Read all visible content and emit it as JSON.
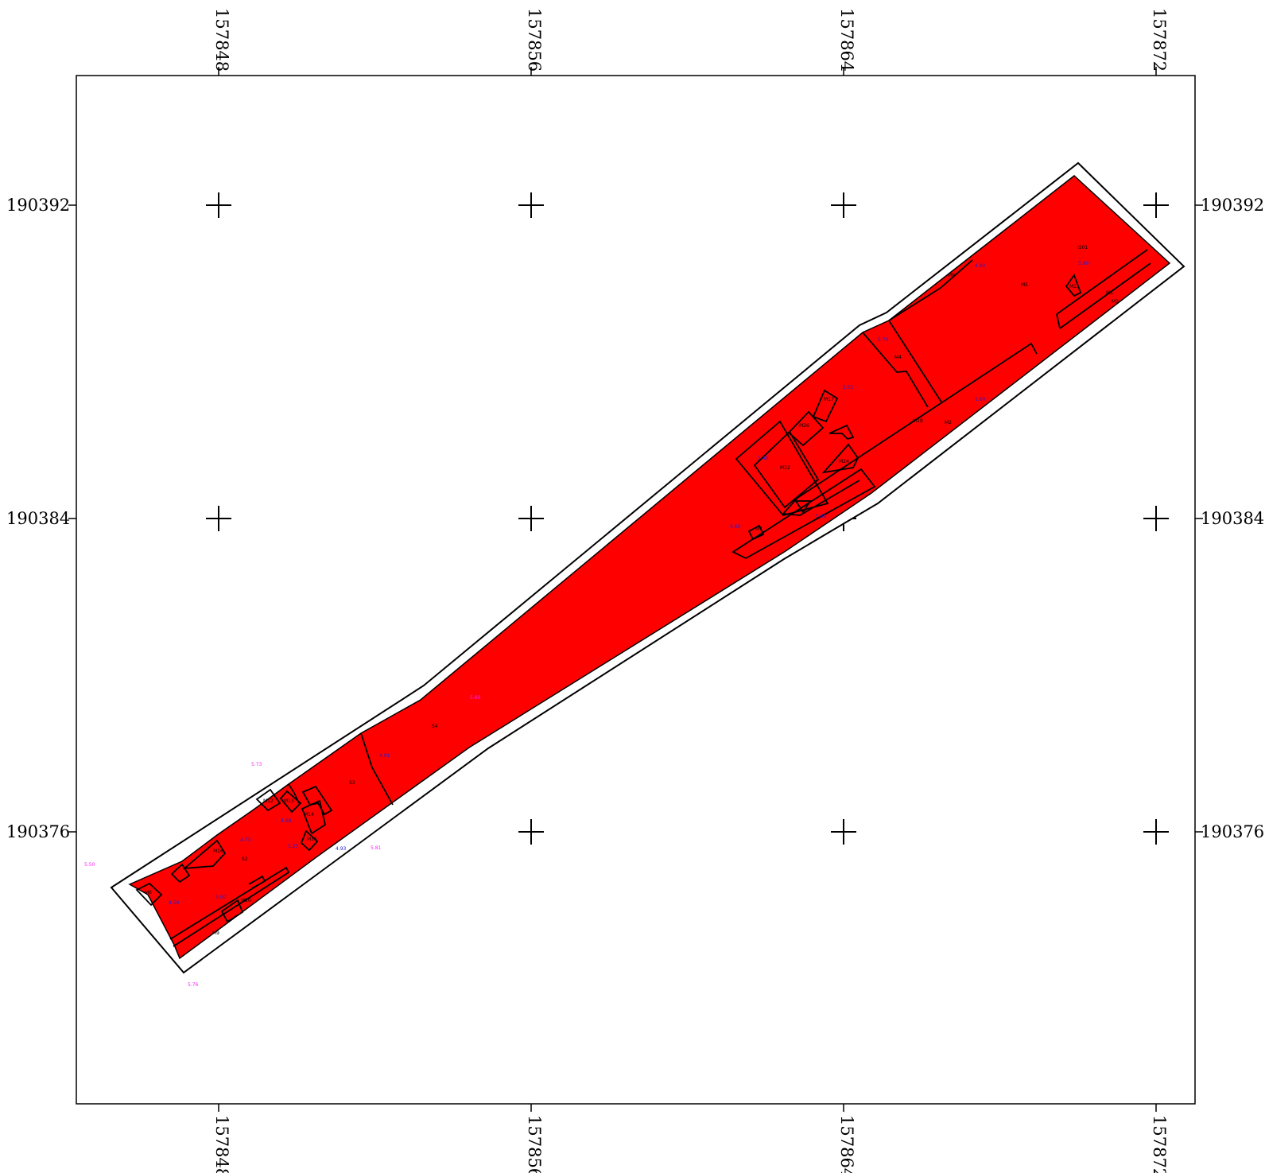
{
  "map": {
    "x_ticks": [
      "157848",
      "157856",
      "157864",
      "157872"
    ],
    "y_ticks": [
      "190392",
      "190384",
      "190376"
    ],
    "colors": {
      "fill": "#ff0000",
      "outline": "#000000",
      "frame": "#000000",
      "label_blue": "#1f1fd8",
      "label_magenta": "#ff22ff"
    },
    "parcel_labels": [
      "M4",
      "M5",
      "M1",
      "M3",
      "M18",
      "M2",
      "M8",
      "M11",
      "M12",
      "M13",
      "M14",
      "M15",
      "M16",
      "M17",
      "M22",
      "M24",
      "M26",
      "S2",
      "S3",
      "S4",
      "M20",
      "M6",
      "M9",
      "IS01",
      "M7"
    ],
    "blue_values": [
      "4.90",
      "5.80",
      "5.70",
      "5.55",
      "5.60",
      "5.40",
      "5.60",
      "5.80",
      "4.73",
      "4.98",
      "5.23",
      "4.93",
      "4.91",
      "5.00",
      "4.50"
    ],
    "magenta_values": [
      "5.73",
      "5.81",
      "5.50",
      "5.76",
      "5.60"
    ]
  }
}
